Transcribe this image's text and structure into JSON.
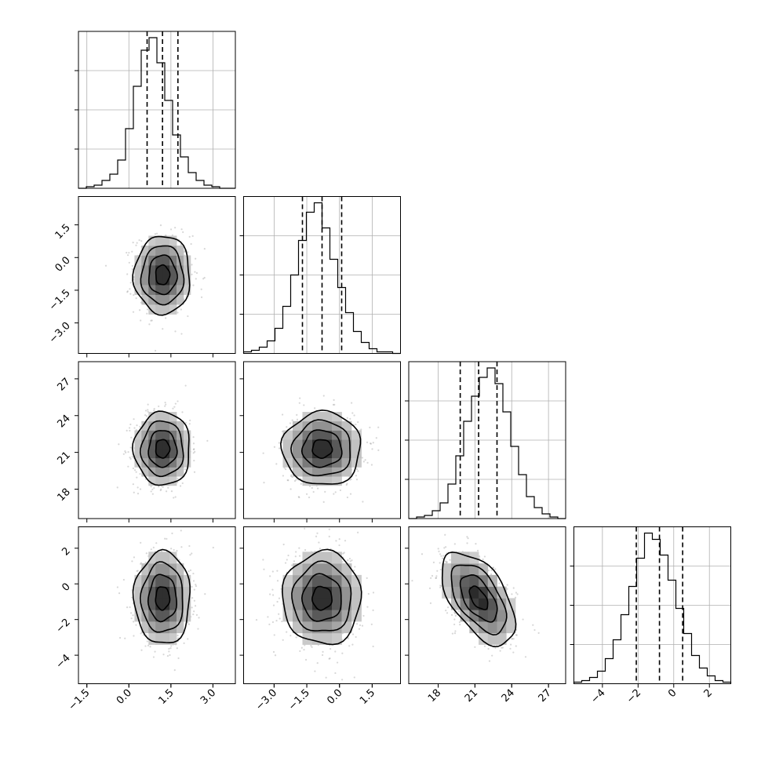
{
  "chart_data": {
    "type": "corner",
    "grid": true,
    "parameters": [
      {
        "index": 0,
        "mean": 1.2,
        "std": 0.5,
        "range": [
          -1.8,
          3.8
        ],
        "ticks": [
          -1.5,
          0.0,
          1.5,
          3.0
        ],
        "tick_labels": [
          "−1.5",
          "0.0",
          "1.5",
          "3.0"
        ],
        "quantiles": [
          0.65,
          1.2,
          1.75
        ]
      },
      {
        "index": 1,
        "mean": -0.8,
        "std": 0.9,
        "range": [
          -4.4,
          2.8
        ],
        "ticks": [
          -3.0,
          -1.5,
          0.0,
          1.5
        ],
        "tick_labels": [
          "−3.0",
          "−1.5",
          "0.0",
          "1.5"
        ],
        "quantiles": [
          -1.7,
          -0.8,
          0.1
        ]
      },
      {
        "index": 2,
        "mean": 21.3,
        "std": 1.5,
        "range": [
          15.6,
          28.4
        ],
        "ticks": [
          18,
          21,
          24,
          27
        ],
        "tick_labels": [
          "18",
          "21",
          "24",
          "27"
        ],
        "quantiles": [
          19.8,
          21.3,
          22.8
        ]
      },
      {
        "index": 3,
        "mean": -0.8,
        "std": 1.3,
        "range": [
          -5.6,
          3.2
        ],
        "ticks": [
          -4,
          -2,
          0,
          2
        ],
        "tick_labels": [
          "−4",
          "−2",
          "0",
          "2"
        ],
        "quantiles": [
          -2.1,
          -0.8,
          0.5
        ]
      }
    ],
    "correlations": {
      "1-0": 0.0,
      "2-0": 0.0,
      "2-1": 0.0,
      "3-0": 0.0,
      "3-1": 0.0,
      "3-2": -0.55
    },
    "histograms": {
      "bins": 20,
      "relative_heights": [
        [
          0,
          0.01,
          0.02,
          0.05,
          0.09,
          0.18,
          0.38,
          0.65,
          0.88,
          0.96,
          0.8,
          0.56,
          0.34,
          0.2,
          0.1,
          0.05,
          0.02,
          0.01,
          0,
          0
        ],
        [
          0.01,
          0.02,
          0.04,
          0.08,
          0.16,
          0.3,
          0.5,
          0.72,
          0.9,
          0.96,
          0.8,
          0.6,
          0.42,
          0.26,
          0.14,
          0.07,
          0.03,
          0.01,
          0.01,
          0
        ],
        [
          0,
          0.01,
          0.02,
          0.05,
          0.1,
          0.22,
          0.4,
          0.62,
          0.78,
          0.9,
          0.96,
          0.86,
          0.68,
          0.46,
          0.28,
          0.14,
          0.07,
          0.03,
          0.01,
          0
        ],
        [
          0.01,
          0.02,
          0.04,
          0.08,
          0.16,
          0.28,
          0.44,
          0.62,
          0.8,
          0.96,
          0.92,
          0.82,
          0.66,
          0.48,
          0.32,
          0.18,
          0.1,
          0.05,
          0.02,
          0.01
        ]
      ]
    },
    "contour_levels_sigma": [
      0.5,
      1.0,
      1.5,
      2.0
    ]
  }
}
